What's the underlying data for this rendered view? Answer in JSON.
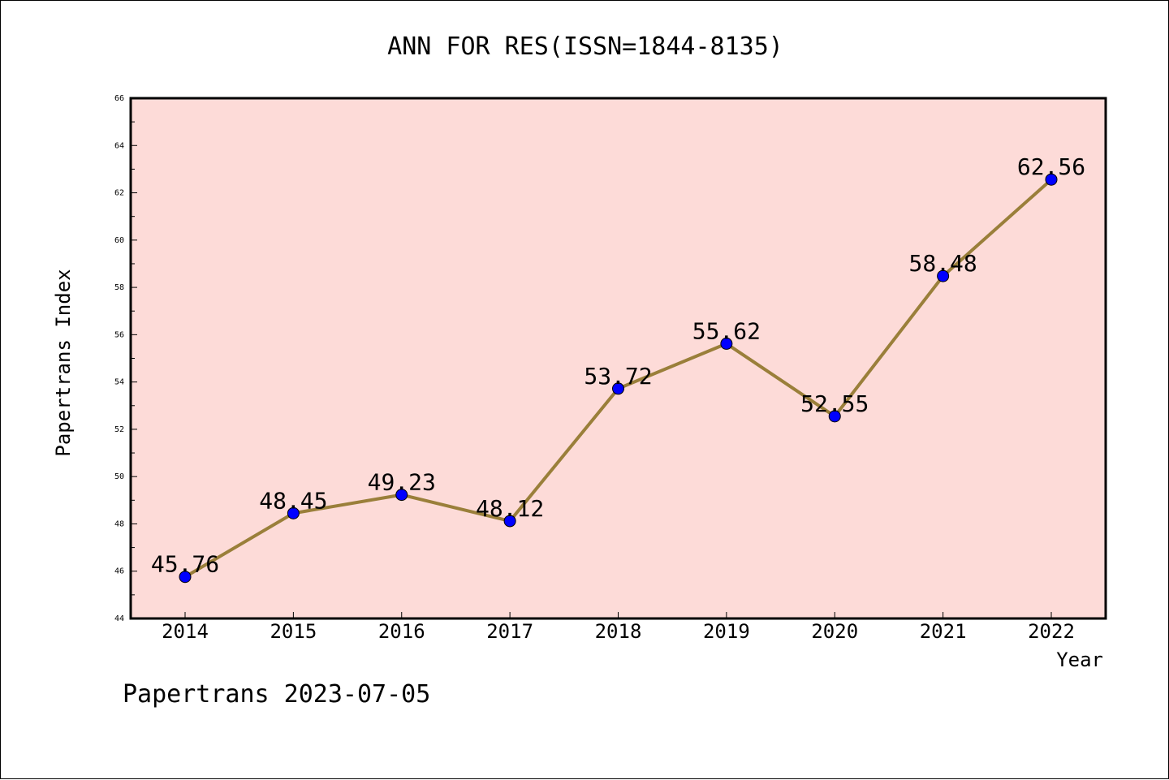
{
  "chart_data": {
    "type": "line",
    "title": "ANN FOR RES(ISSN=1844-8135)",
    "xlabel": "Year",
    "ylabel": "Papertrans Index",
    "categories": [
      "2014",
      "2015",
      "2016",
      "2017",
      "2018",
      "2019",
      "2020",
      "2021",
      "2022"
    ],
    "values": [
      45.76,
      48.45,
      49.23,
      48.12,
      53.72,
      55.62,
      52.55,
      58.48,
      62.56
    ],
    "value_labels": [
      "45.76",
      "48.45",
      "49.23",
      "48.12",
      "53.72",
      "55.62",
      "52.55",
      "58.48",
      "62.56"
    ],
    "ylim": [
      44,
      66
    ],
    "yticks": [
      44,
      46,
      48,
      50,
      52,
      54,
      56,
      58,
      60,
      62,
      64,
      66
    ],
    "grid": false,
    "colors": {
      "plot_background": "#fddbd8",
      "line": "#9a7f3a",
      "marker": "#0000ff",
      "axis": "#000000"
    }
  },
  "footer": {
    "text": "Papertrans 2023-07-05"
  }
}
